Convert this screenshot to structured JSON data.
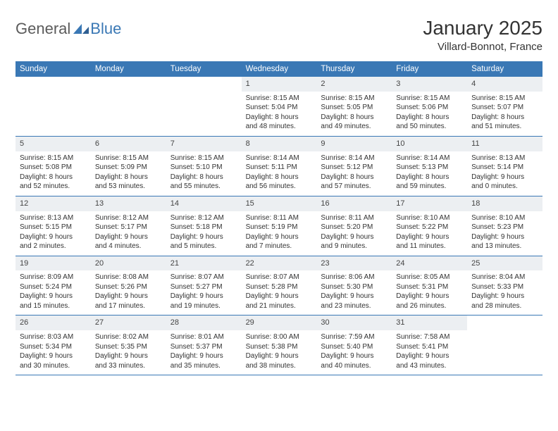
{
  "colors": {
    "header_bg": "#3a78b5",
    "daynum_bg": "#eceff2",
    "text": "#333333",
    "rule": "#3a78b5",
    "logo_gray": "#5b5b5b",
    "logo_blue": "#3a78b5"
  },
  "logo": {
    "part1": "General",
    "part2": "Blue"
  },
  "title": "January 2025",
  "location": "Villard-Bonnot, France",
  "weekdays": [
    "Sunday",
    "Monday",
    "Tuesday",
    "Wednesday",
    "Thursday",
    "Friday",
    "Saturday"
  ],
  "weeks": [
    [
      {
        "day": "",
        "lines": []
      },
      {
        "day": "",
        "lines": []
      },
      {
        "day": "",
        "lines": []
      },
      {
        "day": "1",
        "lines": [
          "Sunrise: 8:15 AM",
          "Sunset: 5:04 PM",
          "Daylight: 8 hours",
          "and 48 minutes."
        ]
      },
      {
        "day": "2",
        "lines": [
          "Sunrise: 8:15 AM",
          "Sunset: 5:05 PM",
          "Daylight: 8 hours",
          "and 49 minutes."
        ]
      },
      {
        "day": "3",
        "lines": [
          "Sunrise: 8:15 AM",
          "Sunset: 5:06 PM",
          "Daylight: 8 hours",
          "and 50 minutes."
        ]
      },
      {
        "day": "4",
        "lines": [
          "Sunrise: 8:15 AM",
          "Sunset: 5:07 PM",
          "Daylight: 8 hours",
          "and 51 minutes."
        ]
      }
    ],
    [
      {
        "day": "5",
        "lines": [
          "Sunrise: 8:15 AM",
          "Sunset: 5:08 PM",
          "Daylight: 8 hours",
          "and 52 minutes."
        ]
      },
      {
        "day": "6",
        "lines": [
          "Sunrise: 8:15 AM",
          "Sunset: 5:09 PM",
          "Daylight: 8 hours",
          "and 53 minutes."
        ]
      },
      {
        "day": "7",
        "lines": [
          "Sunrise: 8:15 AM",
          "Sunset: 5:10 PM",
          "Daylight: 8 hours",
          "and 55 minutes."
        ]
      },
      {
        "day": "8",
        "lines": [
          "Sunrise: 8:14 AM",
          "Sunset: 5:11 PM",
          "Daylight: 8 hours",
          "and 56 minutes."
        ]
      },
      {
        "day": "9",
        "lines": [
          "Sunrise: 8:14 AM",
          "Sunset: 5:12 PM",
          "Daylight: 8 hours",
          "and 57 minutes."
        ]
      },
      {
        "day": "10",
        "lines": [
          "Sunrise: 8:14 AM",
          "Sunset: 5:13 PM",
          "Daylight: 8 hours",
          "and 59 minutes."
        ]
      },
      {
        "day": "11",
        "lines": [
          "Sunrise: 8:13 AM",
          "Sunset: 5:14 PM",
          "Daylight: 9 hours",
          "and 0 minutes."
        ]
      }
    ],
    [
      {
        "day": "12",
        "lines": [
          "Sunrise: 8:13 AM",
          "Sunset: 5:15 PM",
          "Daylight: 9 hours",
          "and 2 minutes."
        ]
      },
      {
        "day": "13",
        "lines": [
          "Sunrise: 8:12 AM",
          "Sunset: 5:17 PM",
          "Daylight: 9 hours",
          "and 4 minutes."
        ]
      },
      {
        "day": "14",
        "lines": [
          "Sunrise: 8:12 AM",
          "Sunset: 5:18 PM",
          "Daylight: 9 hours",
          "and 5 minutes."
        ]
      },
      {
        "day": "15",
        "lines": [
          "Sunrise: 8:11 AM",
          "Sunset: 5:19 PM",
          "Daylight: 9 hours",
          "and 7 minutes."
        ]
      },
      {
        "day": "16",
        "lines": [
          "Sunrise: 8:11 AM",
          "Sunset: 5:20 PM",
          "Daylight: 9 hours",
          "and 9 minutes."
        ]
      },
      {
        "day": "17",
        "lines": [
          "Sunrise: 8:10 AM",
          "Sunset: 5:22 PM",
          "Daylight: 9 hours",
          "and 11 minutes."
        ]
      },
      {
        "day": "18",
        "lines": [
          "Sunrise: 8:10 AM",
          "Sunset: 5:23 PM",
          "Daylight: 9 hours",
          "and 13 minutes."
        ]
      }
    ],
    [
      {
        "day": "19",
        "lines": [
          "Sunrise: 8:09 AM",
          "Sunset: 5:24 PM",
          "Daylight: 9 hours",
          "and 15 minutes."
        ]
      },
      {
        "day": "20",
        "lines": [
          "Sunrise: 8:08 AM",
          "Sunset: 5:26 PM",
          "Daylight: 9 hours",
          "and 17 minutes."
        ]
      },
      {
        "day": "21",
        "lines": [
          "Sunrise: 8:07 AM",
          "Sunset: 5:27 PM",
          "Daylight: 9 hours",
          "and 19 minutes."
        ]
      },
      {
        "day": "22",
        "lines": [
          "Sunrise: 8:07 AM",
          "Sunset: 5:28 PM",
          "Daylight: 9 hours",
          "and 21 minutes."
        ]
      },
      {
        "day": "23",
        "lines": [
          "Sunrise: 8:06 AM",
          "Sunset: 5:30 PM",
          "Daylight: 9 hours",
          "and 23 minutes."
        ]
      },
      {
        "day": "24",
        "lines": [
          "Sunrise: 8:05 AM",
          "Sunset: 5:31 PM",
          "Daylight: 9 hours",
          "and 26 minutes."
        ]
      },
      {
        "day": "25",
        "lines": [
          "Sunrise: 8:04 AM",
          "Sunset: 5:33 PM",
          "Daylight: 9 hours",
          "and 28 minutes."
        ]
      }
    ],
    [
      {
        "day": "26",
        "lines": [
          "Sunrise: 8:03 AM",
          "Sunset: 5:34 PM",
          "Daylight: 9 hours",
          "and 30 minutes."
        ]
      },
      {
        "day": "27",
        "lines": [
          "Sunrise: 8:02 AM",
          "Sunset: 5:35 PM",
          "Daylight: 9 hours",
          "and 33 minutes."
        ]
      },
      {
        "day": "28",
        "lines": [
          "Sunrise: 8:01 AM",
          "Sunset: 5:37 PM",
          "Daylight: 9 hours",
          "and 35 minutes."
        ]
      },
      {
        "day": "29",
        "lines": [
          "Sunrise: 8:00 AM",
          "Sunset: 5:38 PM",
          "Daylight: 9 hours",
          "and 38 minutes."
        ]
      },
      {
        "day": "30",
        "lines": [
          "Sunrise: 7:59 AM",
          "Sunset: 5:40 PM",
          "Daylight: 9 hours",
          "and 40 minutes."
        ]
      },
      {
        "day": "31",
        "lines": [
          "Sunrise: 7:58 AM",
          "Sunset: 5:41 PM",
          "Daylight: 9 hours",
          "and 43 minutes."
        ]
      },
      {
        "day": "",
        "lines": []
      }
    ]
  ]
}
